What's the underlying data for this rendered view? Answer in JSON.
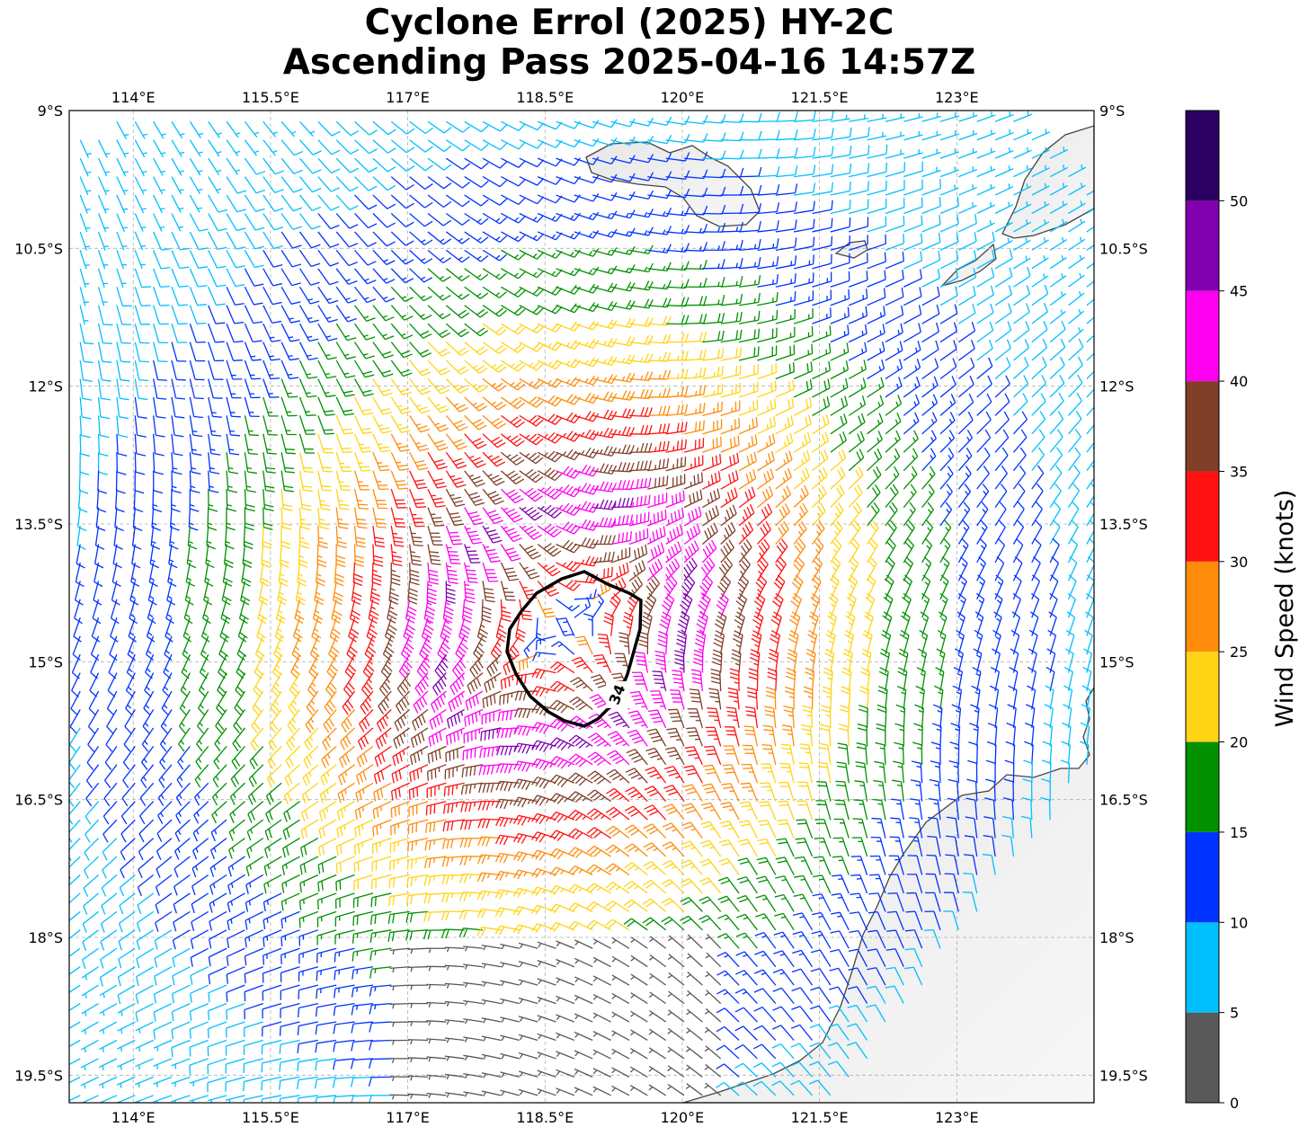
{
  "title_line1": "Cyclone Errol (2025) HY-2C",
  "title_line2": "Ascending Pass 2025-04-16 14:57Z",
  "chart_data": {
    "type": "wind-barb map",
    "lon_range": [
      113.3,
      124.5
    ],
    "lat_range": [
      -19.8,
      -9.0
    ],
    "x_ticks": [
      114,
      115.5,
      117,
      118.5,
      120,
      121.5,
      123
    ],
    "x_tick_labels": [
      "114°E",
      "115.5°E",
      "117°E",
      "118.5°E",
      "120°E",
      "121.5°E",
      "123°E"
    ],
    "y_ticks": [
      -9,
      -10.5,
      -12,
      -13.5,
      -15,
      -16.5,
      -18,
      -19.5
    ],
    "y_tick_labels": [
      "9°S",
      "10.5°S",
      "12°S",
      "13.5°S",
      "15°S",
      "16.5°S",
      "18°S",
      "19.5°S"
    ],
    "grid": true,
    "storm_center": {
      "lon": 118.7,
      "lat": -14.6
    },
    "max_wind_kt": 45,
    "contour": {
      "value": 34,
      "label": "34"
    },
    "colorbar": {
      "label": "Wind Speed (knots)",
      "ticks": [
        0,
        5,
        10,
        15,
        20,
        25,
        30,
        35,
        40,
        45,
        50
      ],
      "tick_labels": [
        "0",
        "5",
        "10",
        "15",
        "20",
        "25",
        "30",
        "35",
        "40",
        "45",
        "50"
      ],
      "bins": [
        {
          "min": 0,
          "max": 5,
          "color": "#595959"
        },
        {
          "min": 5,
          "max": 10,
          "color": "#00bfff"
        },
        {
          "min": 10,
          "max": 15,
          "color": "#0033ff"
        },
        {
          "min": 15,
          "max": 20,
          "color": "#009000"
        },
        {
          "min": 20,
          "max": 25,
          "color": "#ffd414"
        },
        {
          "min": 25,
          "max": 30,
          "color": "#ff8c0a"
        },
        {
          "min": 30,
          "max": 35,
          "color": "#ff1111"
        },
        {
          "min": 35,
          "max": 40,
          "color": "#7f3f28"
        },
        {
          "min": 40,
          "max": 45,
          "color": "#ff00f0"
        },
        {
          "min": 45,
          "max": 50,
          "color": "#8000b0"
        },
        {
          "min": 50,
          "max": 55,
          "color": "#2a0060"
        }
      ]
    }
  }
}
